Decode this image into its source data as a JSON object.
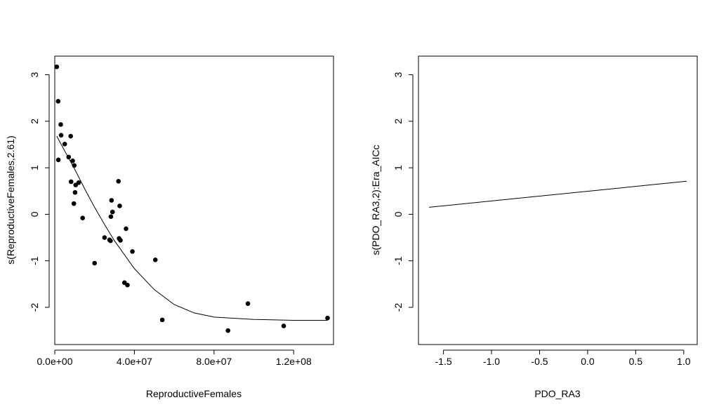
{
  "chart_data": [
    {
      "type": "scatter",
      "xlabel": "ReproductiveFemales",
      "ylabel": "s(ReproductiveFemales,2.61)",
      "xlim": [
        0,
        140000000
      ],
      "ylim": [
        -2.8,
        3.4
      ],
      "xticks": [
        0,
        40000000,
        80000000,
        120000000
      ],
      "xtick_labels": [
        "0.0e+00",
        "4.0e+07",
        "8.0e+07",
        "1.2e+08"
      ],
      "yticks": [
        -2,
        -1,
        0,
        1,
        2,
        3
      ],
      "ytick_labels": [
        "-2",
        "-1",
        "0",
        "1",
        "2",
        "3"
      ],
      "grid": false,
      "points": [
        {
          "x": 1000000,
          "y": 3.17
        },
        {
          "x": 1700000,
          "y": 2.43
        },
        {
          "x": 1800000,
          "y": 1.17
        },
        {
          "x": 3000000,
          "y": 1.93
        },
        {
          "x": 3200000,
          "y": 1.7
        },
        {
          "x": 5000000,
          "y": 1.51
        },
        {
          "x": 7000000,
          "y": 1.23
        },
        {
          "x": 8000000,
          "y": 1.68
        },
        {
          "x": 8200000,
          "y": 0.7
        },
        {
          "x": 9000000,
          "y": 1.15
        },
        {
          "x": 9800000,
          "y": 1.05
        },
        {
          "x": 9600000,
          "y": 0.23
        },
        {
          "x": 10200000,
          "y": 0.47
        },
        {
          "x": 10500000,
          "y": 0.63
        },
        {
          "x": 12000000,
          "y": 0.68
        },
        {
          "x": 14000000,
          "y": -0.08
        },
        {
          "x": 20000000,
          "y": -1.05
        },
        {
          "x": 25000000,
          "y": -0.5
        },
        {
          "x": 27500000,
          "y": -0.55
        },
        {
          "x": 28000000,
          "y": -0.57
        },
        {
          "x": 28200000,
          "y": -0.05
        },
        {
          "x": 28500000,
          "y": 0.3
        },
        {
          "x": 29000000,
          "y": 0.05
        },
        {
          "x": 32000000,
          "y": 0.71
        },
        {
          "x": 32300000,
          "y": -0.52
        },
        {
          "x": 32600000,
          "y": 0.18
        },
        {
          "x": 33000000,
          "y": -0.56
        },
        {
          "x": 35000000,
          "y": -1.47
        },
        {
          "x": 35800000,
          "y": -0.31
        },
        {
          "x": 36500000,
          "y": -1.52
        },
        {
          "x": 39000000,
          "y": -0.8
        },
        {
          "x": 50500000,
          "y": -0.98
        },
        {
          "x": 54000000,
          "y": -2.27
        },
        {
          "x": 87000000,
          "y": -2.5
        },
        {
          "x": 97000000,
          "y": -1.92
        },
        {
          "x": 115000000,
          "y": -2.4
        },
        {
          "x": 137000000,
          "y": -2.23
        }
      ],
      "smooth_line": [
        {
          "x": 1000000,
          "y": 1.68
        },
        {
          "x": 5000000,
          "y": 1.36
        },
        {
          "x": 10000000,
          "y": 0.97
        },
        {
          "x": 15000000,
          "y": 0.55
        },
        {
          "x": 20000000,
          "y": 0.15
        },
        {
          "x": 25000000,
          "y": -0.22
        },
        {
          "x": 30000000,
          "y": -0.57
        },
        {
          "x": 40000000,
          "y": -1.17
        },
        {
          "x": 50000000,
          "y": -1.62
        },
        {
          "x": 60000000,
          "y": -1.94
        },
        {
          "x": 70000000,
          "y": -2.12
        },
        {
          "x": 80000000,
          "y": -2.21
        },
        {
          "x": 100000000,
          "y": -2.26
        },
        {
          "x": 120000000,
          "y": -2.28
        },
        {
          "x": 137000000,
          "y": -2.28
        }
      ]
    },
    {
      "type": "line",
      "xlabel": "PDO_RA3",
      "ylabel": "s(PDO_RA3,2):Era_AICc",
      "xlim": [
        -1.76,
        1.14
      ],
      "ylim": [
        -2.8,
        3.4
      ],
      "xticks": [
        -1.5,
        -1.0,
        -0.5,
        0.0,
        0.5,
        1.0
      ],
      "xtick_labels": [
        "-1.5",
        "-1.0",
        "-0.5",
        "0.0",
        "0.5",
        "1.0"
      ],
      "yticks": [
        -2,
        -1,
        0,
        1,
        2,
        3
      ],
      "ytick_labels": [
        "-2",
        "-1",
        "0",
        "1",
        "2",
        "3"
      ],
      "grid": false,
      "line": [
        {
          "x": -1.65,
          "y": 0.15
        },
        {
          "x": 1.03,
          "y": 0.71
        }
      ]
    }
  ]
}
